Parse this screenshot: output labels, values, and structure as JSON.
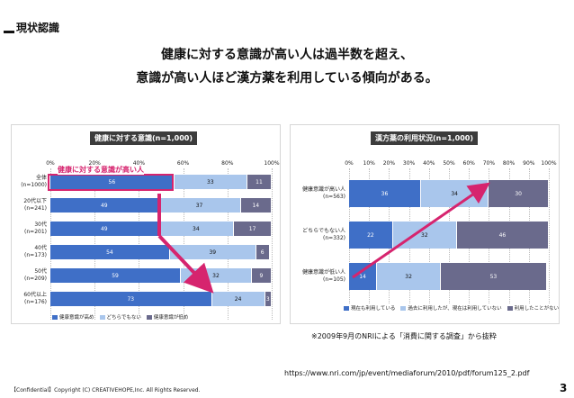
{
  "slide": {
    "section_title": "現状認識",
    "headline_1": "健康に対する意識が高い人は過半数を超え、",
    "headline_2": "意識が高い人ほど漢方薬を利用している傾向がある。",
    "footnote": "※2009年9月のNRIによる「消費に関する調査」から抜粋",
    "url": "https://www.nri.com/jp/event/mediaforum/2010/pdf/forum125_2.pdf",
    "confidential": "【Confidential】Copyright (C) CREATIVEHOPE,Inc. All Rights Reserved.",
    "page_number": "3",
    "annotation": "健康に対する意識が高い人"
  },
  "chart_data": [
    {
      "type": "bar",
      "orientation": "horizontal-stacked",
      "title": "健康に対する意識(n=1,000)",
      "ticks": [
        "0%",
        "20%",
        "40%",
        "60%",
        "80%",
        "100%"
      ],
      "categories": [
        {
          "label": "全体",
          "n": "(n=1000)"
        },
        {
          "label": "20代以下",
          "n": "(n=241)"
        },
        {
          "label": "30代",
          "n": "(n=201)"
        },
        {
          "label": "40代",
          "n": "(n=173)"
        },
        {
          "label": "50代",
          "n": "(n=209)"
        },
        {
          "label": "60代以上",
          "n": "(n=176)"
        }
      ],
      "series": [
        {
          "name": "健康意識が高め",
          "color": "#3f6fc7",
          "values": [
            56,
            49,
            49,
            54,
            59,
            73
          ]
        },
        {
          "name": "どちらでもない",
          "color": "#a9c6ec",
          "values": [
            33,
            37,
            34,
            39,
            32,
            24
          ]
        },
        {
          "name": "健康意識が低め",
          "color": "#6a6a8c",
          "values": [
            11,
            14,
            17,
            6,
            9,
            3
          ]
        }
      ]
    },
    {
      "type": "bar",
      "orientation": "horizontal-stacked",
      "title": "漢方薬の利用状況(n=1,000)",
      "ticks": [
        "0%",
        "10%",
        "20%",
        "30%",
        "40%",
        "50%",
        "60%",
        "70%",
        "80%",
        "90%",
        "100%"
      ],
      "categories": [
        {
          "label": "健康意識が高い人",
          "n": "(n=563)"
        },
        {
          "label": "どちらでもない人",
          "n": "(n=332)"
        },
        {
          "label": "健康意識が低い人",
          "n": "(n=105)"
        }
      ],
      "series": [
        {
          "name": "現在も利用している",
          "color": "#3f6fc7",
          "values": [
            36,
            22,
            14
          ]
        },
        {
          "name": "過去に利用したが、現在は利用していない",
          "color": "#a9c6ec",
          "values": [
            34,
            32,
            32
          ]
        },
        {
          "name": "利用したことがない",
          "color": "#6a6a8c",
          "values": [
            30,
            46,
            53
          ]
        }
      ]
    }
  ]
}
